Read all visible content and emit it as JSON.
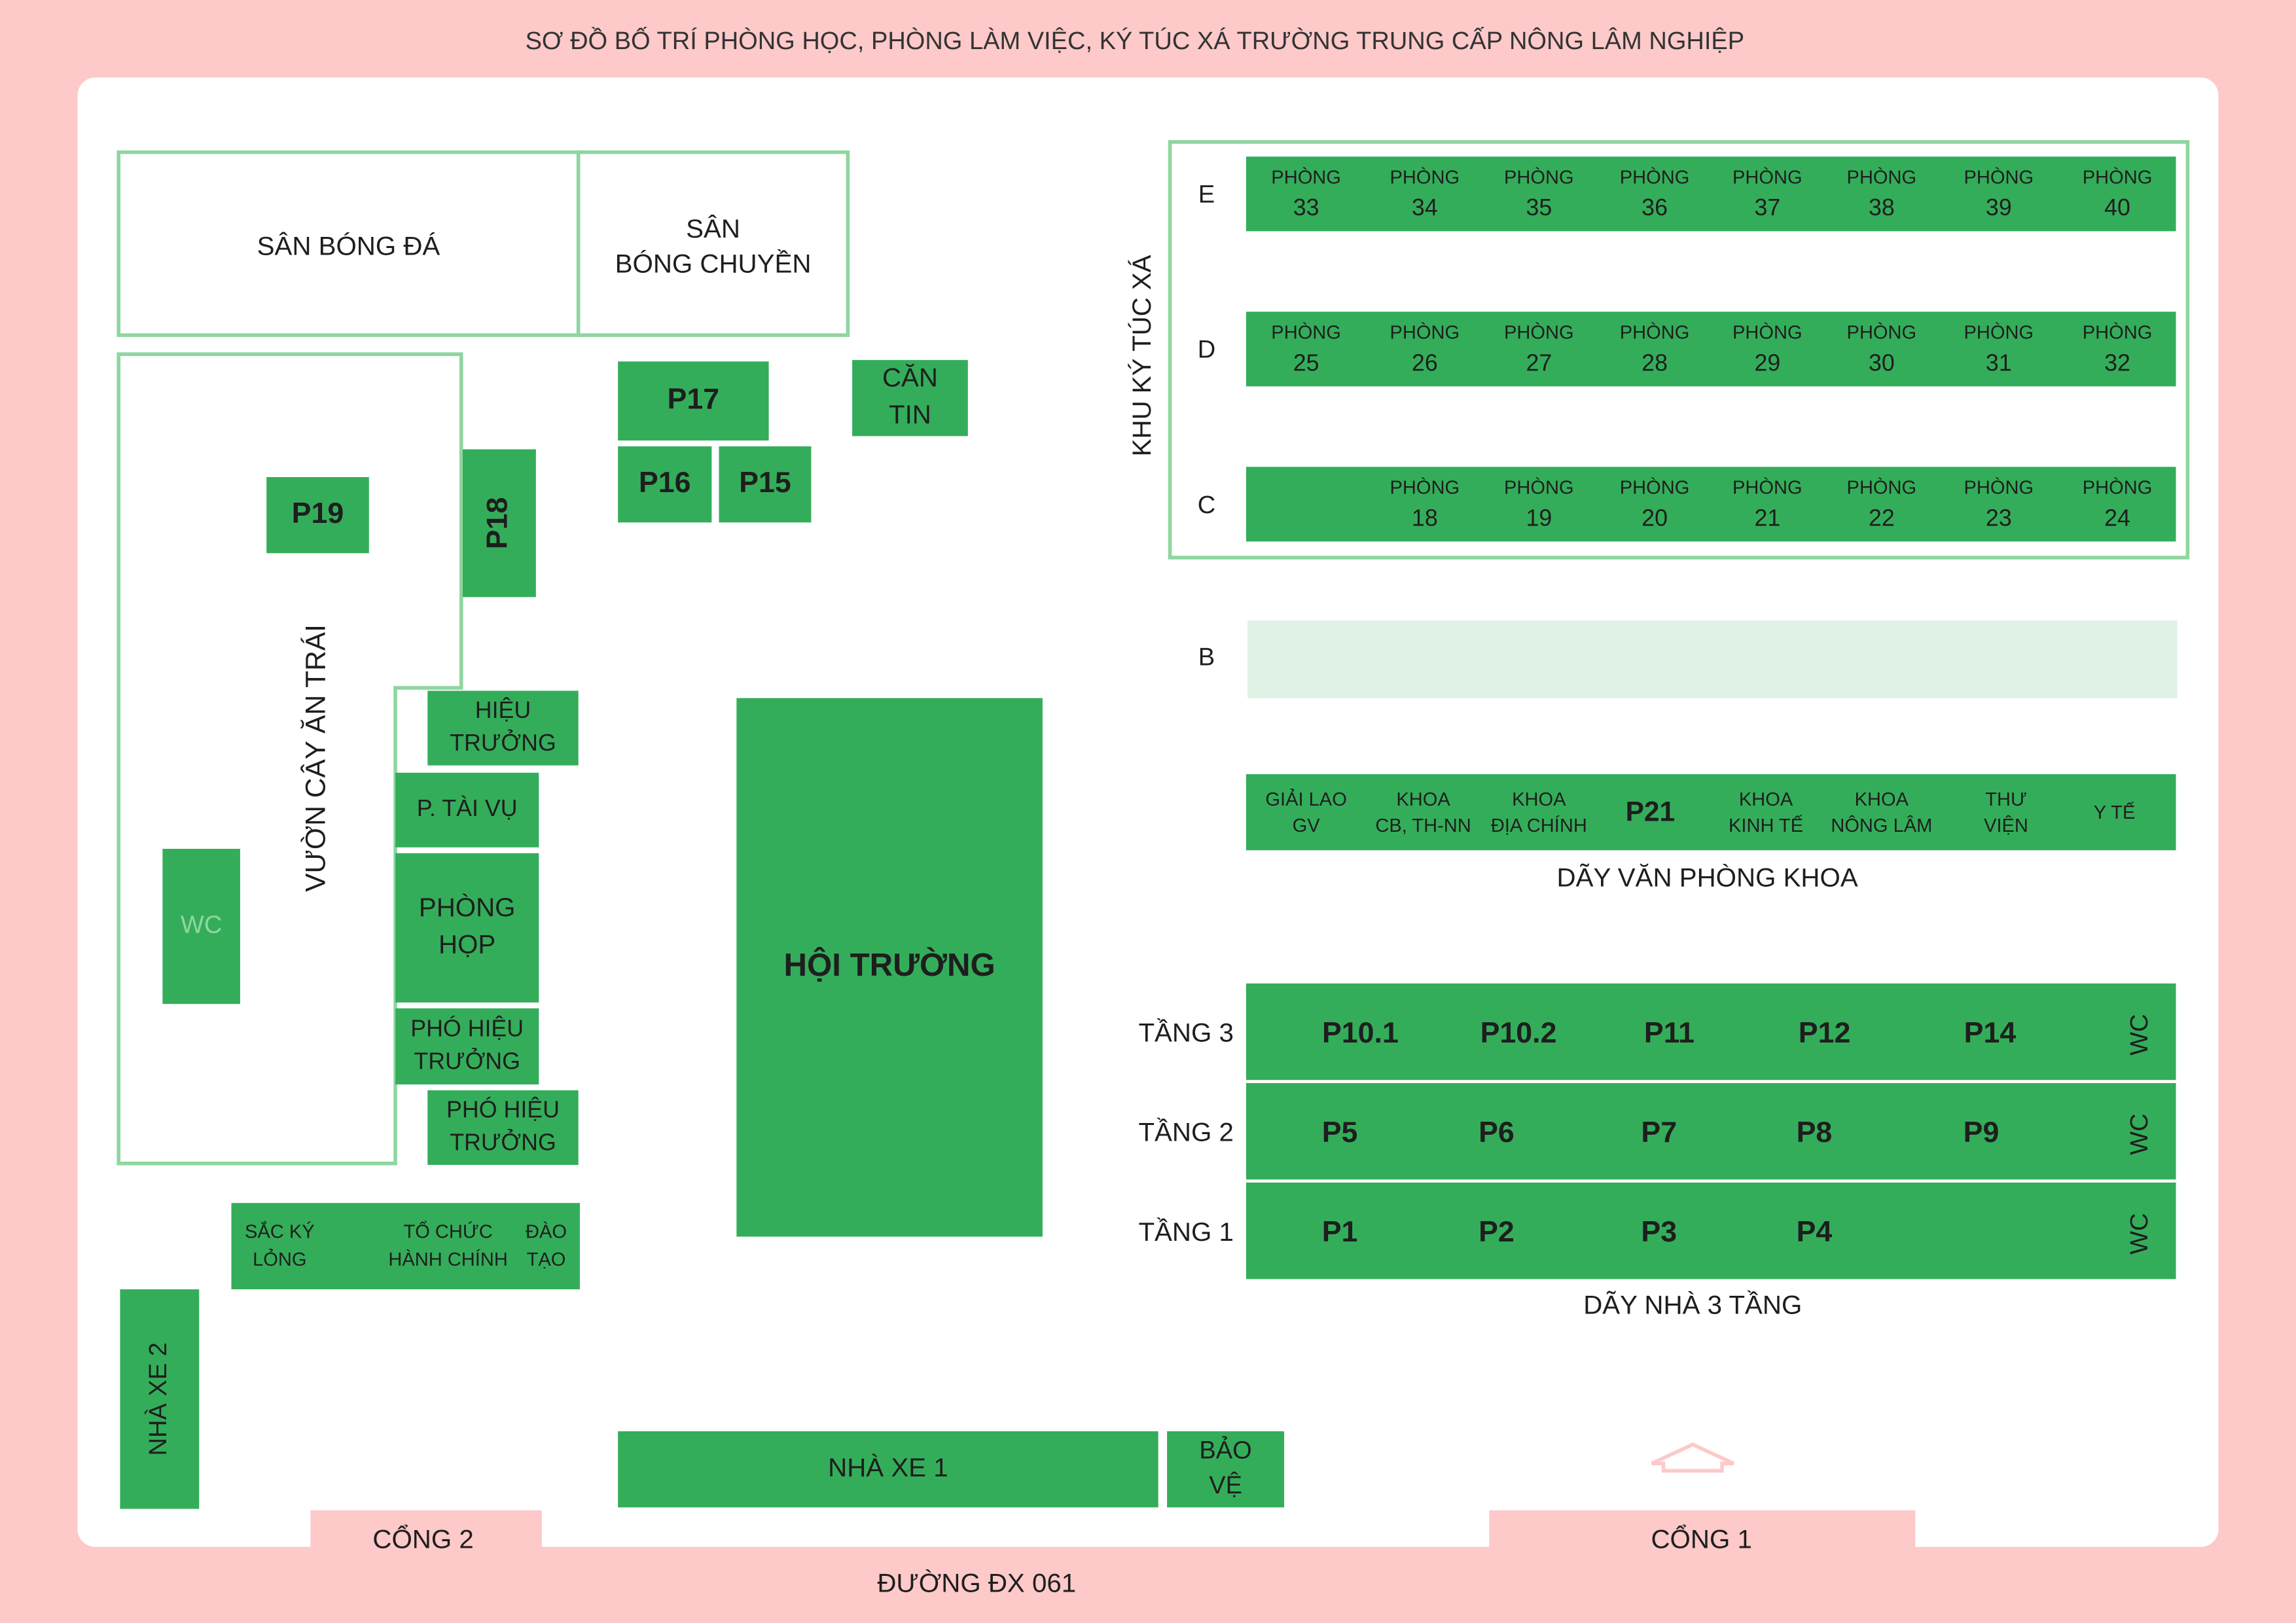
{
  "title": "SƠ ĐỒ BỐ TRÍ PHÒNG HỌC, PHÒNG LÀM VIỆC, KÝ TÚC XÁ TRƯỜNG TRUNG CẤP NÔNG LÂM NGHIỆP",
  "fields": [
    {
      "lines": [
        "SÂN BÓNG ĐÁ"
      ]
    },
    {
      "lines": [
        "SÂN",
        "BÓNG CHUYỀN"
      ]
    }
  ],
  "orchard": "VƯỜN CÂY ĂN TRÁI",
  "buildings": [
    {
      "lines": [
        "P17"
      ]
    },
    {
      "lines": [
        "P16"
      ]
    },
    {
      "lines": [
        "P15"
      ]
    },
    {
      "lines": [
        "CĂN",
        "TIN"
      ]
    },
    {
      "lines": [
        "P19"
      ]
    },
    {
      "lines": [
        "P18"
      ]
    },
    {
      "lines": [
        "HIỆU",
        "TRƯỞNG"
      ]
    },
    {
      "lines": [
        "P. TÀI VỤ"
      ]
    },
    {
      "lines": [
        "PHÒNG",
        "HỌP"
      ]
    },
    {
      "lines": [
        "PHÓ HIỆU",
        "TRƯỞNG"
      ]
    },
    {
      "lines": [
        "PHÓ HIỆU",
        "TRƯỞNG"
      ]
    },
    {
      "lines": [
        "WC"
      ]
    },
    {
      "lines": [
        "HỘI TRƯỜNG"
      ]
    },
    {
      "lines": [
        "NHÀ XE 2"
      ]
    },
    {
      "lines": [
        "NHÀ XE 1"
      ]
    },
    {
      "lines": [
        "BẢO",
        "VỆ"
      ]
    }
  ],
  "admin_block": [
    {
      "lines": [
        "SẮC KÝ",
        "LỎNG"
      ]
    },
    {
      "lines": [
        "TỔ CHỨC",
        "HÀNH CHÍNH"
      ]
    },
    {
      "lines": [
        "ĐÀO",
        "TẠO"
      ]
    }
  ],
  "dormitory": {
    "title": "KHU KÝ TÚC XÁ",
    "rows": [
      {
        "name": "E",
        "rooms": [
          [
            "PHÒNG",
            "33"
          ],
          [
            "PHÒNG",
            "34"
          ],
          [
            "PHÒNG",
            "35"
          ],
          [
            "PHÒNG",
            "36"
          ],
          [
            "PHÒNG",
            "37"
          ],
          [
            "PHÒNG",
            "38"
          ],
          [
            "PHÒNG",
            "39"
          ],
          [
            "PHÒNG",
            "40"
          ]
        ]
      },
      {
        "name": "D",
        "rooms": [
          [
            "PHÒNG",
            "25"
          ],
          [
            "PHÒNG",
            "26"
          ],
          [
            "PHÒNG",
            "27"
          ],
          [
            "PHÒNG",
            "28"
          ],
          [
            "PHÒNG",
            "29"
          ],
          [
            "PHÒNG",
            "30"
          ],
          [
            "PHÒNG",
            "31"
          ],
          [
            "PHÒNG",
            "32"
          ]
        ]
      },
      {
        "name": "C",
        "rooms": [
          [
            "PHÒNG",
            "18"
          ],
          [
            "PHÒNG",
            "19"
          ],
          [
            "PHÒNG",
            "20"
          ],
          [
            "PHÒNG",
            "21"
          ],
          [
            "PHÒNG",
            "22"
          ],
          [
            "PHÒNG",
            "23"
          ],
          [
            "PHÒNG",
            "24"
          ]
        ]
      }
    ]
  },
  "row_b": "B",
  "faculty_offices": {
    "rooms": [
      [
        "GIẢI LAO",
        "GV"
      ],
      [
        "KHOA",
        "CB, TH-NN"
      ],
      [
        "KHOA",
        "ĐỊA CHÍNH"
      ],
      [
        "P21"
      ],
      [
        "KHOA",
        "KINH TẾ"
      ],
      [
        "KHOA",
        "NÔNG LÂM"
      ],
      [
        "THƯ",
        "VIỆN"
      ],
      [
        "Y TẾ"
      ]
    ],
    "caption": "DÃY VĂN PHÒNG KHOA"
  },
  "three_storey": {
    "floors": [
      {
        "name": "TẦNG 3",
        "rooms": [
          "P10.1",
          "P10.2",
          "P11",
          "P12",
          "P14"
        ],
        "wc": "WC"
      },
      {
        "name": "TẦNG 2",
        "rooms": [
          "P5",
          "P6",
          "P7",
          "P8",
          "P9"
        ],
        "wc": "WC"
      },
      {
        "name": "TẦNG 1",
        "rooms": [
          "P1",
          "P2",
          "P3",
          "P4"
        ],
        "wc": "WC"
      }
    ],
    "caption": "DÃY NHÀ 3 TẦNG"
  },
  "gates": [
    "CỔNG 2",
    "CỔNG 1"
  ],
  "road": "ĐƯỜNG ĐX 061"
}
